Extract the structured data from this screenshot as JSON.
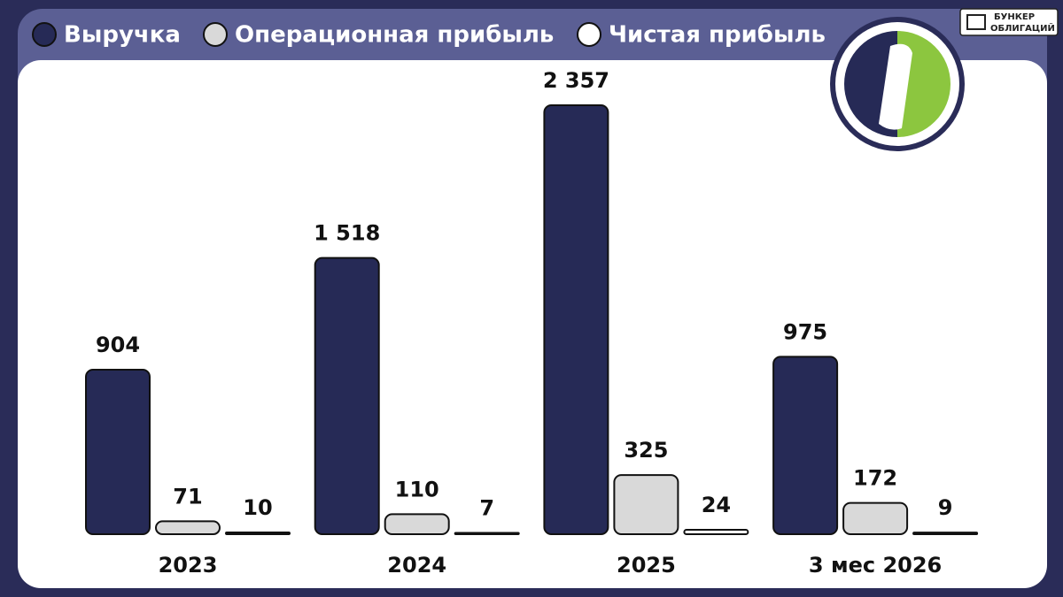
{
  "chart_data": {
    "type": "bar",
    "categories": [
      "2023",
      "2024",
      "2025",
      "3 мес 2026"
    ],
    "series": [
      {
        "name": "Выручка",
        "color": "#262a56",
        "values": [
          904,
          1518,
          2357,
          975
        ],
        "value_labels": [
          "904",
          "1 518",
          "2 357",
          "975"
        ]
      },
      {
        "name": "Операционная прибыль",
        "color": "#d9d9d9",
        "values": [
          71,
          110,
          325,
          172
        ]
      },
      {
        "name": "Чистая прибыль",
        "color": "#ffffff",
        "values": [
          10,
          7,
          24,
          9
        ]
      }
    ],
    "annotations": [
      "БУНКЕР",
      "ОБЛИГАЦИЙ"
    ]
  }
}
